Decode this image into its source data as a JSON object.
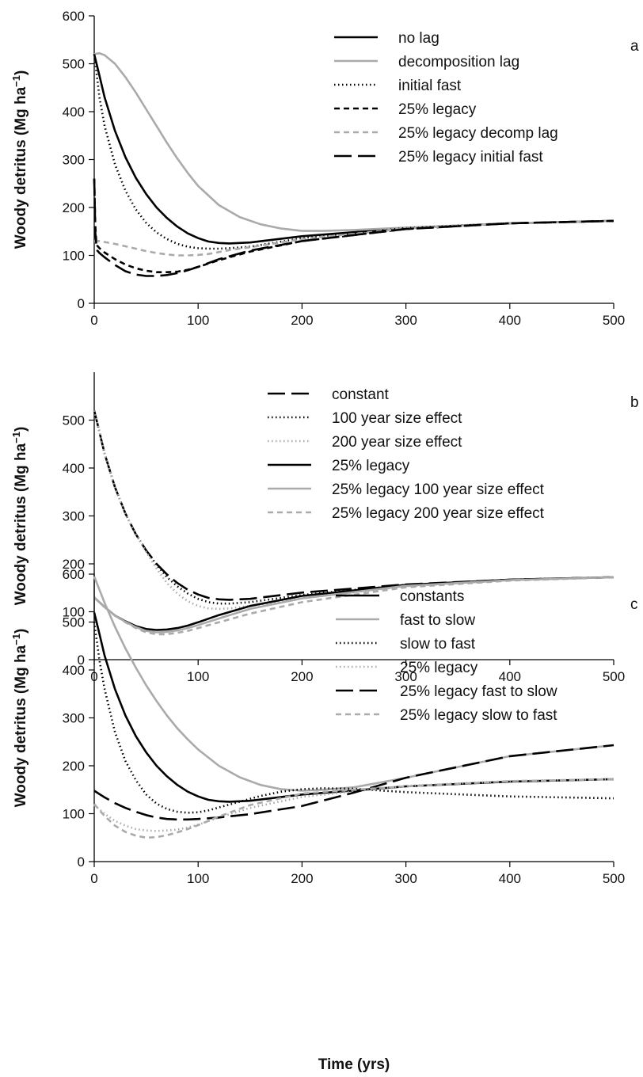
{
  "xlabel": "Time (yrs)",
  "chart_data": [
    {
      "panel_label": "a",
      "type": "line",
      "ylabel_main": "Woody detritus (Mg ha",
      "ylabel_sup": "−1",
      "ylabel_close": ")",
      "xlim": [
        0,
        500
      ],
      "ylim": [
        0,
        600
      ],
      "x_ticks": [
        "0",
        "100",
        "200",
        "300",
        "400",
        "500"
      ],
      "y_ticks": [
        "0",
        "100",
        "200",
        "300",
        "400",
        "500",
        "600"
      ],
      "legend_placement": "top-right",
      "series": [
        {
          "name": "no lag",
          "color": "#000000",
          "dash": "solid",
          "x": [
            0,
            5,
            10,
            20,
            30,
            40,
            50,
            60,
            70,
            80,
            90,
            100,
            110,
            120,
            130,
            150,
            200,
            300,
            400,
            500
          ],
          "y": [
            520,
            475,
            430,
            360,
            305,
            262,
            228,
            200,
            178,
            160,
            146,
            136,
            129,
            126,
            125,
            127,
            140,
            157,
            167,
            172
          ]
        },
        {
          "name": "decomposition lag",
          "color": "#aaaaaa",
          "dash": "solid",
          "x": [
            0,
            5,
            10,
            20,
            30,
            40,
            50,
            60,
            70,
            80,
            90,
            100,
            120,
            140,
            160,
            180,
            200,
            220,
            250,
            300,
            400,
            500
          ],
          "y": [
            520,
            522,
            518,
            500,
            472,
            440,
            405,
            370,
            335,
            302,
            272,
            245,
            205,
            180,
            165,
            156,
            151,
            151,
            153,
            158,
            167,
            172
          ]
        },
        {
          "name": "initial fast",
          "color": "#000000",
          "dash": "dot",
          "x": [
            0,
            5,
            10,
            20,
            30,
            40,
            50,
            60,
            70,
            80,
            90,
            100,
            110,
            120,
            130,
            150,
            200,
            300,
            400,
            500
          ],
          "y": [
            520,
            430,
            370,
            290,
            235,
            196,
            168,
            148,
            134,
            124,
            118,
            115,
            114,
            114,
            115,
            118,
            136,
            157,
            167,
            172
          ]
        },
        {
          "name": "25% legacy",
          "color": "#000000",
          "dash": "short",
          "x": [
            0,
            1,
            2,
            3,
            5,
            10,
            20,
            30,
            40,
            50,
            60,
            70,
            80,
            90,
            100,
            120,
            150,
            200,
            300,
            400,
            500
          ],
          "y": [
            260,
            165,
            128,
            120,
            115,
            106,
            92,
            81,
            73,
            68,
            65,
            65,
            66,
            70,
            76,
            90,
            108,
            130,
            155,
            167,
            172
          ]
        },
        {
          "name": "25% legacy decomp lag",
          "color": "#aaaaaa",
          "dash": "short",
          "x": [
            0,
            5,
            10,
            20,
            30,
            40,
            50,
            60,
            70,
            80,
            90,
            100,
            110,
            120,
            130,
            150,
            200,
            300,
            400,
            500
          ],
          "y": [
            130,
            130,
            128,
            124,
            119,
            114,
            109,
            105,
            102,
            100,
            100,
            101,
            103,
            107,
            111,
            117,
            134,
            156,
            167,
            172
          ]
        },
        {
          "name": "25% legacy initial fast",
          "color": "#000000",
          "dash": "long",
          "x": [
            0,
            1,
            2,
            3,
            5,
            10,
            20,
            30,
            40,
            50,
            60,
            70,
            80,
            90,
            100,
            120,
            150,
            200,
            300,
            400,
            500
          ],
          "y": [
            260,
            150,
            122,
            110,
            105,
            96,
            80,
            67,
            60,
            57,
            57,
            59,
            63,
            69,
            76,
            92,
            110,
            130,
            155,
            167,
            172
          ]
        }
      ]
    },
    {
      "panel_label": "b",
      "type": "line",
      "ylabel_main": "Woody detritus (Mg ha",
      "ylabel_sup": "−1",
      "ylabel_close": ")",
      "xlim": [
        0,
        500
      ],
      "ylim": [
        0,
        600
      ],
      "x_ticks": [
        "0",
        "100",
        "200",
        "300",
        "400",
        "500"
      ],
      "y_ticks": [
        "0",
        "100",
        "200",
        "300",
        "400",
        "500"
      ],
      "legend_placement": "top-right",
      "series": [
        {
          "name": "constant",
          "color": "#000000",
          "dash": "long",
          "x": [
            0,
            5,
            10,
            20,
            30,
            40,
            50,
            60,
            70,
            80,
            90,
            100,
            110,
            120,
            130,
            150,
            200,
            300,
            400,
            500
          ],
          "y": [
            520,
            475,
            430,
            360,
            305,
            262,
            228,
            200,
            178,
            160,
            146,
            136,
            129,
            126,
            125,
            127,
            140,
            157,
            167,
            172
          ]
        },
        {
          "name": "100 year size effect",
          "color": "#000000",
          "dash": "dot",
          "x": [
            0,
            5,
            10,
            20,
            30,
            40,
            50,
            60,
            70,
            80,
            90,
            100,
            110,
            120,
            130,
            150,
            200,
            300,
            400,
            500
          ],
          "y": [
            520,
            475,
            430,
            360,
            305,
            262,
            228,
            198,
            172,
            153,
            138,
            127,
            120,
            117,
            117,
            120,
            135,
            156,
            167,
            172
          ]
        },
        {
          "name": "200 year size effect",
          "color": "#aaaaaa",
          "dash": "dot",
          "x": [
            0,
            5,
            10,
            20,
            30,
            40,
            50,
            60,
            70,
            80,
            90,
            100,
            110,
            120,
            130,
            150,
            200,
            300,
            400,
            500
          ],
          "y": [
            520,
            475,
            430,
            360,
            305,
            262,
            225,
            190,
            160,
            138,
            122,
            112,
            107,
            106,
            107,
            112,
            128,
            153,
            166,
            172
          ]
        },
        {
          "name": "25% legacy",
          "color": "#000000",
          "dash": "solid",
          "x": [
            0,
            10,
            20,
            30,
            40,
            50,
            60,
            70,
            80,
            90,
            100,
            120,
            150,
            200,
            300,
            400,
            500
          ],
          "y": [
            130,
            110,
            92,
            80,
            70,
            64,
            62,
            63,
            66,
            71,
            78,
            93,
            112,
            133,
            156,
            167,
            172
          ]
        },
        {
          "name": "25% legacy 100 year size effect",
          "color": "#aaaaaa",
          "dash": "solid",
          "x": [
            0,
            10,
            20,
            30,
            40,
            50,
            60,
            70,
            80,
            90,
            100,
            120,
            150,
            200,
            300,
            400,
            500
          ],
          "y": [
            130,
            110,
            92,
            79,
            68,
            60,
            57,
            58,
            61,
            66,
            72,
            86,
            106,
            128,
            154,
            166,
            172
          ]
        },
        {
          "name": "25% legacy 200 year size effect",
          "color": "#aaaaaa",
          "dash": "short",
          "x": [
            0,
            10,
            20,
            30,
            40,
            50,
            60,
            70,
            80,
            90,
            100,
            120,
            150,
            200,
            300,
            400,
            500
          ],
          "y": [
            130,
            110,
            92,
            78,
            66,
            57,
            53,
            53,
            56,
            60,
            66,
            78,
            96,
            120,
            151,
            165,
            172
          ]
        }
      ]
    },
    {
      "panel_label": "c",
      "type": "line",
      "ylabel_main": "Woody detritus (Mg ha",
      "ylabel_sup": "−1",
      "ylabel_close": ")",
      "xlim": [
        0,
        500
      ],
      "ylim": [
        0,
        600
      ],
      "x_ticks": [
        "0",
        "100",
        "200",
        "300",
        "400",
        "500"
      ],
      "y_ticks": [
        "0",
        "100",
        "200",
        "300",
        "400",
        "500",
        "600"
      ],
      "legend_placement": "top-right",
      "series": [
        {
          "name": "constants",
          "color": "#000000",
          "dash": "solid",
          "x": [
            0,
            5,
            10,
            20,
            30,
            40,
            50,
            60,
            70,
            80,
            90,
            100,
            110,
            120,
            130,
            150,
            200,
            300,
            400,
            500
          ],
          "y": [
            520,
            475,
            430,
            360,
            305,
            262,
            228,
            200,
            178,
            160,
            146,
            136,
            129,
            126,
            125,
            127,
            140,
            157,
            167,
            172
          ]
        },
        {
          "name": "fast to slow",
          "color": "#aaaaaa",
          "dash": "solid",
          "x": [
            0,
            10,
            20,
            30,
            40,
            50,
            60,
            70,
            80,
            90,
            100,
            120,
            140,
            160,
            180,
            200,
            220,
            250,
            300,
            400,
            500
          ],
          "y": [
            595,
            540,
            490,
            445,
            405,
            368,
            335,
            305,
            278,
            255,
            234,
            200,
            176,
            160,
            151,
            148,
            150,
            155,
            175,
            220,
            243
          ]
        },
        {
          "name": "slow to fast",
          "color": "#000000",
          "dash": "dot",
          "x": [
            0,
            5,
            10,
            20,
            30,
            40,
            50,
            60,
            70,
            80,
            90,
            100,
            110,
            120,
            140,
            160,
            180,
            200,
            220,
            250,
            300,
            400,
            500
          ],
          "y": [
            500,
            420,
            360,
            270,
            210,
            170,
            140,
            121,
            110,
            104,
            102,
            103,
            107,
            113,
            125,
            137,
            146,
            151,
            153,
            152,
            145,
            136,
            132
          ]
        },
        {
          "name": "25% legacy",
          "color": "#aaaaaa",
          "dash": "dot",
          "x": [
            0,
            10,
            20,
            30,
            40,
            50,
            60,
            70,
            80,
            90,
            100,
            120,
            150,
            200,
            300,
            400,
            500
          ],
          "y": [
            118,
            100,
            85,
            75,
            68,
            65,
            64,
            65,
            67,
            71,
            77,
            92,
            112,
            135,
            158,
            168,
            172
          ]
        },
        {
          "name": "25% legacy fast to slow",
          "color": "#000000",
          "dash": "long",
          "x": [
            0,
            10,
            20,
            30,
            40,
            50,
            60,
            70,
            80,
            90,
            100,
            120,
            150,
            200,
            250,
            300,
            400,
            500
          ],
          "y": [
            148,
            134,
            122,
            112,
            104,
            97,
            92,
            89,
            88,
            88,
            89,
            92,
            99,
            116,
            144,
            175,
            220,
            243
          ]
        },
        {
          "name": "25% legacy slow to fast",
          "color": "#aaaaaa",
          "dash": "short",
          "x": [
            0,
            10,
            20,
            30,
            40,
            50,
            60,
            70,
            80,
            90,
            100,
            120,
            150,
            200,
            250,
            300,
            400,
            500
          ],
          "y": [
            120,
            95,
            75,
            62,
            54,
            50,
            51,
            55,
            61,
            68,
            76,
            94,
            118,
            142,
            150,
            157,
            168,
            172
          ]
        }
      ]
    }
  ]
}
